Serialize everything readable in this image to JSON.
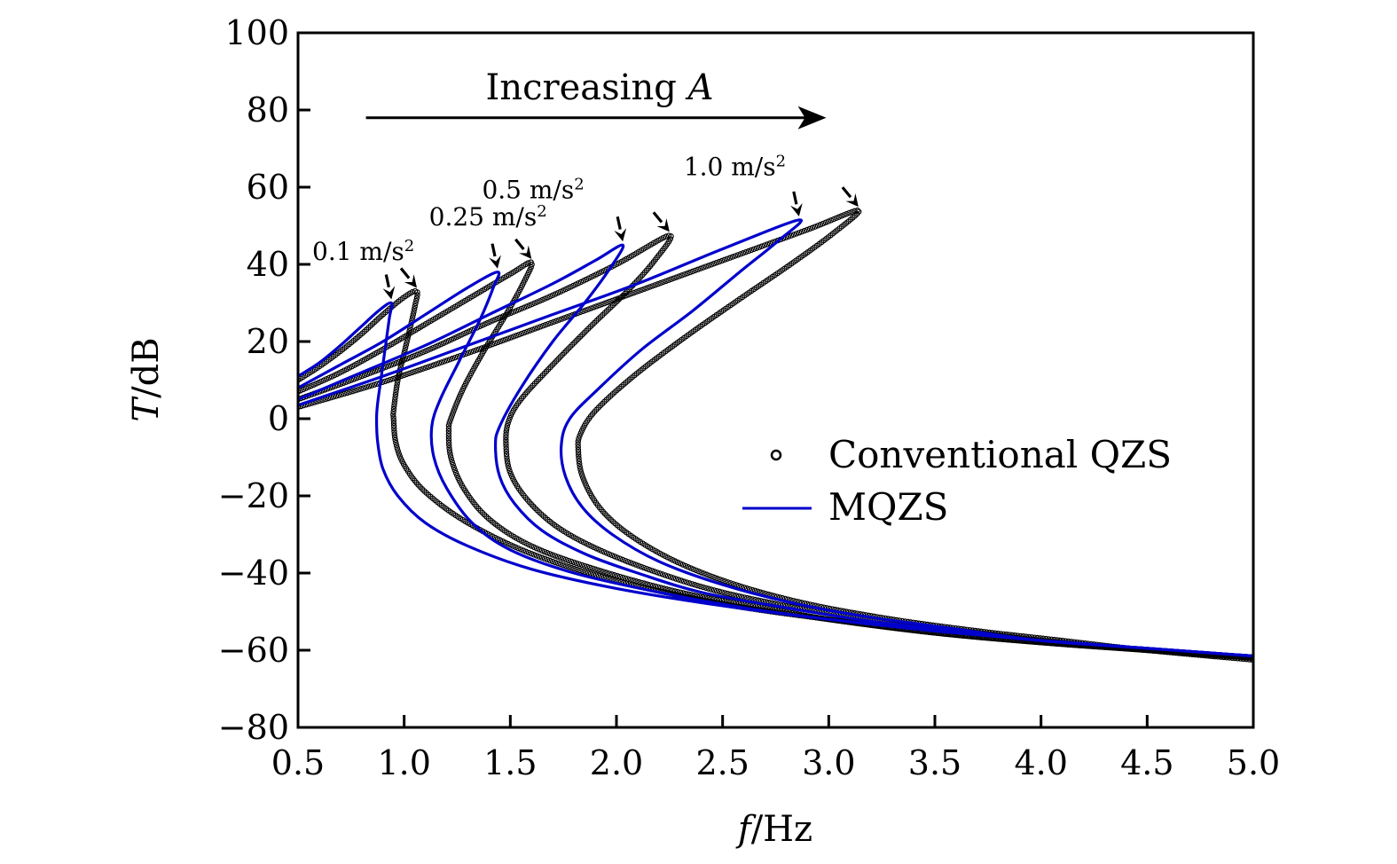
{
  "chart_data": {
    "type": "line",
    "title": "",
    "xlabel": "f/Hz",
    "xlabel_italic_part": "f",
    "xlabel_unit": "/Hz",
    "ylabel": "T/dB",
    "ylabel_italic_part": "T",
    "ylabel_unit": "/dB",
    "xlim": [
      0.5,
      5.0
    ],
    "ylim": [
      -80,
      100
    ],
    "xticks": [
      0.5,
      1.0,
      1.5,
      2.0,
      2.5,
      3.0,
      3.5,
      4.0,
      4.5,
      5.0
    ],
    "xtick_labels": [
      "0.5",
      "1.0",
      "1.5",
      "2.0",
      "2.5",
      "3.0",
      "3.5",
      "4.0",
      "4.5",
      "5.0"
    ],
    "yticks": [
      100,
      80,
      60,
      40,
      20,
      0,
      -20,
      -40,
      -60,
      -80
    ],
    "ytick_labels": [
      "100",
      "80",
      "60",
      "40",
      "20",
      "0",
      "−20",
      "−40",
      "−60",
      "−80"
    ],
    "grid": false,
    "legend": {
      "position": "center-right",
      "entries": [
        {
          "label": "Conventional QZS",
          "marker": "open-circle",
          "color": "#000000"
        },
        {
          "label": "MQZS",
          "marker": "line",
          "color": "#0000cc"
        }
      ]
    },
    "annotations": {
      "arrow_text": "Increasing ",
      "arrow_text_italic": "A",
      "arrow_from": [
        0.82,
        78
      ],
      "arrow_to": [
        2.98,
        78
      ],
      "amplitude_labels": [
        {
          "text": "0.1 m/s",
          "sup": "2",
          "at": [
            0.5,
            43
          ]
        },
        {
          "text": "0.25 m/s",
          "sup": "2",
          "at": [
            1.05,
            52
          ]
        },
        {
          "text": "0.5 m/s",
          "sup": "2",
          "at": [
            1.3,
            59
          ]
        },
        {
          "text": "1.0 m/s",
          "sup": "2",
          "at": [
            2.25,
            65
          ]
        }
      ]
    },
    "series": [
      {
        "name": "MQZS",
        "amplitude": "0.1 m/s2",
        "color": "#0000cc",
        "style": "line",
        "upper_branch": [
          [
            0.5,
            11
          ],
          [
            0.6,
            14.5
          ],
          [
            0.7,
            19
          ],
          [
            0.8,
            24
          ],
          [
            0.88,
            28
          ],
          [
            0.94,
            30
          ]
        ],
        "middle_branch": [
          [
            0.94,
            30
          ],
          [
            0.93,
            26
          ],
          [
            0.91,
            18
          ],
          [
            0.89,
            10
          ],
          [
            0.875,
            4
          ],
          [
            0.87,
            0
          ]
        ],
        "lower_branch": [
          [
            0.87,
            0
          ],
          [
            0.875,
            -6
          ],
          [
            0.9,
            -13
          ],
          [
            0.97,
            -20
          ],
          [
            1.1,
            -27
          ],
          [
            1.3,
            -33
          ],
          [
            1.6,
            -39
          ],
          [
            2.0,
            -44
          ],
          [
            2.5,
            -48.5
          ],
          [
            3.0,
            -52
          ],
          [
            3.5,
            -55
          ],
          [
            4.0,
            -57.5
          ],
          [
            4.5,
            -59.5
          ],
          [
            5.0,
            -61.5
          ]
        ]
      },
      {
        "name": "Conventional QZS",
        "amplitude": "0.1 m/s2",
        "color": "#000000",
        "style": "circles",
        "upper_branch": [
          [
            0.5,
            10
          ],
          [
            0.6,
            13.5
          ],
          [
            0.7,
            17.5
          ],
          [
            0.8,
            22
          ],
          [
            0.9,
            27
          ],
          [
            1.0,
            31.5
          ],
          [
            1.06,
            33
          ]
        ],
        "middle_branch": [
          [
            1.06,
            33
          ],
          [
            1.05,
            29
          ],
          [
            1.03,
            24
          ],
          [
            1.0,
            17
          ],
          [
            0.97,
            10
          ],
          [
            0.95,
            2
          ],
          [
            0.95,
            0
          ]
        ],
        "lower_branch": [
          [
            0.95,
            0
          ],
          [
            0.96,
            -6
          ],
          [
            1.0,
            -12
          ],
          [
            1.1,
            -19
          ],
          [
            1.3,
            -27
          ],
          [
            1.6,
            -35
          ],
          [
            2.0,
            -42
          ],
          [
            2.5,
            -48
          ],
          [
            3.0,
            -52
          ],
          [
            3.5,
            -55.5
          ],
          [
            4.0,
            -58
          ],
          [
            4.5,
            -60
          ],
          [
            5.0,
            -62
          ]
        ]
      },
      {
        "name": "MQZS",
        "amplitude": "0.25 m/s2",
        "color": "#0000cc",
        "style": "line",
        "upper_branch": [
          [
            0.5,
            8
          ],
          [
            0.7,
            14
          ],
          [
            0.9,
            20
          ],
          [
            1.1,
            27
          ],
          [
            1.3,
            34
          ],
          [
            1.44,
            38
          ]
        ],
        "middle_branch": [
          [
            1.44,
            38
          ],
          [
            1.42,
            34
          ],
          [
            1.36,
            26
          ],
          [
            1.26,
            15
          ],
          [
            1.17,
            5
          ],
          [
            1.13,
            -2
          ]
        ],
        "lower_branch": [
          [
            1.13,
            -2
          ],
          [
            1.14,
            -10
          ],
          [
            1.2,
            -18
          ],
          [
            1.32,
            -27
          ],
          [
            1.5,
            -34
          ],
          [
            1.8,
            -40
          ],
          [
            2.2,
            -45
          ],
          [
            2.6,
            -49
          ],
          [
            3.0,
            -52
          ],
          [
            3.5,
            -55
          ],
          [
            4.0,
            -57.5
          ],
          [
            4.5,
            -59.5
          ],
          [
            5.0,
            -61.5
          ]
        ]
      },
      {
        "name": "Conventional QZS",
        "amplitude": "0.25 m/s2",
        "color": "#000000",
        "style": "circles",
        "upper_branch": [
          [
            0.5,
            7
          ],
          [
            0.7,
            12
          ],
          [
            0.9,
            18
          ],
          [
            1.1,
            24.5
          ],
          [
            1.3,
            31
          ],
          [
            1.5,
            37.5
          ],
          [
            1.6,
            40.5
          ]
        ],
        "middle_branch": [
          [
            1.6,
            40.5
          ],
          [
            1.56,
            35
          ],
          [
            1.48,
            27
          ],
          [
            1.38,
            18
          ],
          [
            1.28,
            8
          ],
          [
            1.22,
            0
          ],
          [
            1.21,
            -3
          ]
        ],
        "lower_branch": [
          [
            1.21,
            -3
          ],
          [
            1.22,
            -10
          ],
          [
            1.28,
            -18
          ],
          [
            1.4,
            -26
          ],
          [
            1.6,
            -33
          ],
          [
            1.9,
            -39
          ],
          [
            2.3,
            -45
          ],
          [
            2.7,
            -49
          ],
          [
            3.0,
            -52
          ],
          [
            3.5,
            -55.5
          ],
          [
            4.0,
            -58
          ],
          [
            4.5,
            -60
          ],
          [
            5.0,
            -62
          ]
        ]
      },
      {
        "name": "MQZS",
        "amplitude": "0.5 m/s2",
        "color": "#0000cc",
        "style": "line",
        "upper_branch": [
          [
            0.5,
            5
          ],
          [
            0.8,
            12
          ],
          [
            1.1,
            19
          ],
          [
            1.4,
            27
          ],
          [
            1.7,
            35
          ],
          [
            1.9,
            41
          ],
          [
            2.03,
            45
          ]
        ],
        "middle_branch": [
          [
            2.03,
            45
          ],
          [
            1.97,
            39
          ],
          [
            1.85,
            30
          ],
          [
            1.7,
            20
          ],
          [
            1.55,
            8
          ],
          [
            1.45,
            -2
          ],
          [
            1.43,
            -7
          ]
        ],
        "lower_branch": [
          [
            1.43,
            -7
          ],
          [
            1.45,
            -15
          ],
          [
            1.52,
            -22
          ],
          [
            1.65,
            -29
          ],
          [
            1.85,
            -35
          ],
          [
            2.1,
            -40
          ],
          [
            2.4,
            -45
          ],
          [
            2.8,
            -49
          ],
          [
            3.2,
            -52.5
          ],
          [
            3.6,
            -55
          ],
          [
            4.0,
            -57.5
          ],
          [
            4.5,
            -59.5
          ],
          [
            5.0,
            -61.5
          ]
        ]
      },
      {
        "name": "Conventional QZS",
        "amplitude": "0.5 m/s2",
        "color": "#000000",
        "style": "circles",
        "upper_branch": [
          [
            0.5,
            5
          ],
          [
            0.8,
            11
          ],
          [
            1.1,
            17.5
          ],
          [
            1.4,
            25
          ],
          [
            1.7,
            32
          ],
          [
            2.0,
            40
          ],
          [
            2.25,
            47.5
          ]
        ],
        "middle_branch": [
          [
            2.25,
            47.5
          ],
          [
            2.18,
            41
          ],
          [
            2.05,
            33
          ],
          [
            1.88,
            24
          ],
          [
            1.7,
            14
          ],
          [
            1.55,
            5
          ],
          [
            1.49,
            -1
          ],
          [
            1.48,
            -7
          ]
        ],
        "lower_branch": [
          [
            1.48,
            -7
          ],
          [
            1.5,
            -14
          ],
          [
            1.58,
            -21
          ],
          [
            1.72,
            -28
          ],
          [
            1.92,
            -34
          ],
          [
            2.2,
            -40
          ],
          [
            2.5,
            -45
          ],
          [
            2.9,
            -49.5
          ],
          [
            3.3,
            -53
          ],
          [
            3.7,
            -55.5
          ],
          [
            4.0,
            -57.5
          ],
          [
            4.5,
            -60
          ],
          [
            5.0,
            -62
          ]
        ]
      },
      {
        "name": "MQZS",
        "amplitude": "1.0 m/s2",
        "color": "#0000cc",
        "style": "line",
        "upper_branch": [
          [
            0.5,
            3.5
          ],
          [
            0.9,
            11
          ],
          [
            1.3,
            19
          ],
          [
            1.7,
            27
          ],
          [
            2.1,
            35
          ],
          [
            2.5,
            44
          ],
          [
            2.86,
            51.5
          ]
        ],
        "middle_branch": [
          [
            2.86,
            51.5
          ],
          [
            2.76,
            46
          ],
          [
            2.58,
            38
          ],
          [
            2.36,
            28
          ],
          [
            2.12,
            18
          ],
          [
            1.92,
            8
          ],
          [
            1.78,
            0
          ],
          [
            1.74,
            -7
          ]
        ],
        "lower_branch": [
          [
            1.74,
            -7
          ],
          [
            1.76,
            -15
          ],
          [
            1.84,
            -23
          ],
          [
            1.98,
            -30
          ],
          [
            2.2,
            -37
          ],
          [
            2.5,
            -43
          ],
          [
            2.85,
            -48
          ],
          [
            3.2,
            -51.5
          ],
          [
            3.6,
            -54.5
          ],
          [
            4.0,
            -57.5
          ],
          [
            4.5,
            -59.5
          ],
          [
            5.0,
            -61.5
          ]
        ]
      },
      {
        "name": "Conventional QZS",
        "amplitude": "1.0 m/s2",
        "color": "#000000",
        "style": "circles",
        "upper_branch": [
          [
            0.5,
            3
          ],
          [
            0.9,
            9.5
          ],
          [
            1.3,
            17
          ],
          [
            1.7,
            25
          ],
          [
            2.1,
            33
          ],
          [
            2.5,
            41
          ],
          [
            2.9,
            49
          ],
          [
            3.14,
            54
          ]
        ],
        "middle_branch": [
          [
            3.14,
            54
          ],
          [
            3.02,
            48
          ],
          [
            2.82,
            40
          ],
          [
            2.58,
            31
          ],
          [
            2.32,
            21
          ],
          [
            2.08,
            11
          ],
          [
            1.9,
            2
          ],
          [
            1.83,
            -4
          ],
          [
            1.82,
            -8
          ]
        ],
        "lower_branch": [
          [
            1.82,
            -8
          ],
          [
            1.84,
            -15
          ],
          [
            1.92,
            -23
          ],
          [
            2.06,
            -30
          ],
          [
            2.28,
            -37
          ],
          [
            2.56,
            -43
          ],
          [
            2.9,
            -48
          ],
          [
            3.3,
            -52
          ],
          [
            3.7,
            -55
          ],
          [
            4.1,
            -57.5
          ],
          [
            4.5,
            -60
          ],
          [
            5.0,
            -62.5
          ]
        ]
      }
    ],
    "arrows_to_peaks": [
      {
        "amplitude": "0.1 m/s2",
        "targets": [
          "MQZS peak",
          "Conventional QZS peak"
        ]
      },
      {
        "amplitude": "0.25 m/s2",
        "targets": [
          "MQZS peak",
          "Conventional QZS peak"
        ]
      },
      {
        "amplitude": "0.5 m/s2",
        "targets": [
          "MQZS peak",
          "Conventional QZS peak"
        ]
      },
      {
        "amplitude": "1.0 m/s2",
        "targets": [
          "MQZS peak",
          "Conventional QZS peak"
        ]
      }
    ]
  }
}
